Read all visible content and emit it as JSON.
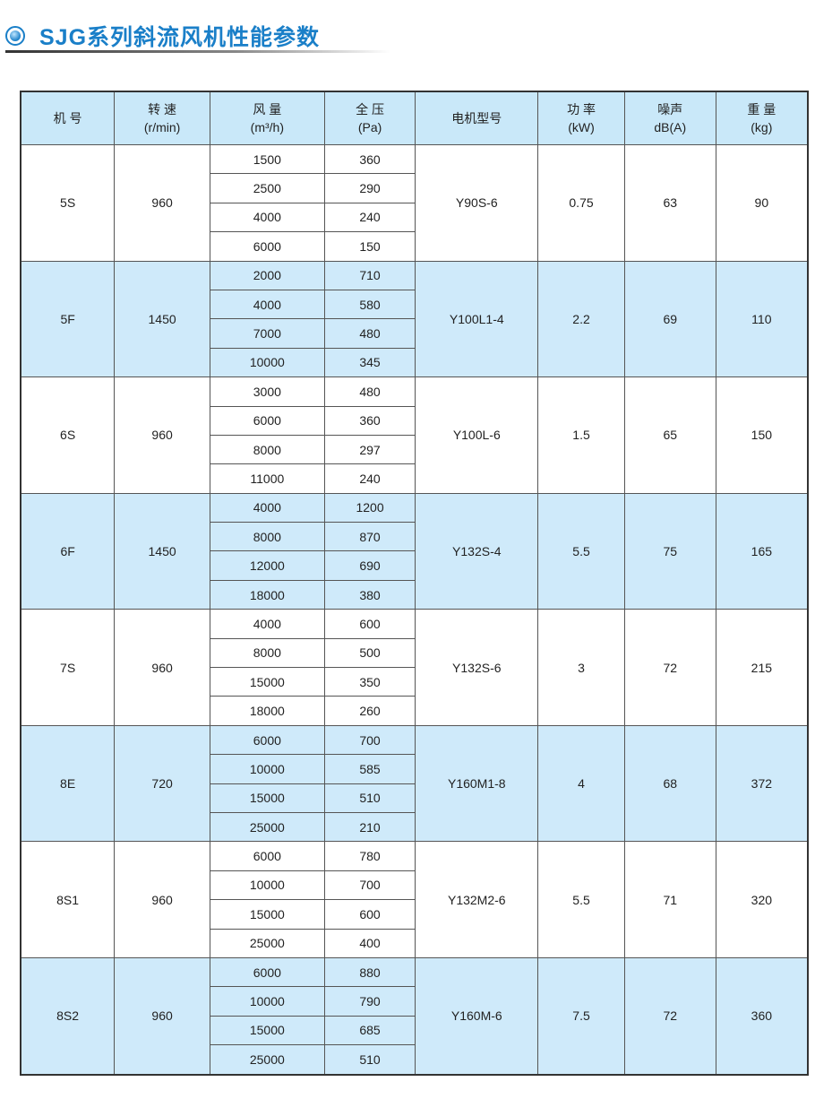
{
  "title": "SJG系列斜流风机性能参数",
  "headers": [
    {
      "l1": "机 号",
      "l2": ""
    },
    {
      "l1": "转 速",
      "l2": "(r/min)"
    },
    {
      "l1": "风 量",
      "l2": "(m³/h)"
    },
    {
      "l1": "全 压",
      "l2": "(Pa)"
    },
    {
      "l1": "电机型号",
      "l2": ""
    },
    {
      "l1": "功 率",
      "l2": "(kW)"
    },
    {
      "l1": "噪声",
      "l2": "dB(A)"
    },
    {
      "l1": "重 量",
      "l2": "(kg)"
    }
  ],
  "rows": [
    {
      "model": "5S",
      "speed": "960",
      "flow": [
        "1500",
        "2500",
        "4000",
        "6000"
      ],
      "pressure": [
        "360",
        "290",
        "240",
        "150"
      ],
      "motor": "Y90S-6",
      "power": "0.75",
      "noise": "63",
      "weight": "90"
    },
    {
      "model": "5F",
      "speed": "1450",
      "flow": [
        "2000",
        "4000",
        "7000",
        "10000"
      ],
      "pressure": [
        "710",
        "580",
        "480",
        "345"
      ],
      "motor": "Y100L1-4",
      "power": "2.2",
      "noise": "69",
      "weight": "110"
    },
    {
      "model": "6S",
      "speed": "960",
      "flow": [
        "3000",
        "6000",
        "8000",
        "11000"
      ],
      "pressure": [
        "480",
        "360",
        "297",
        "240"
      ],
      "motor": "Y100L-6",
      "power": "1.5",
      "noise": "65",
      "weight": "150"
    },
    {
      "model": "6F",
      "speed": "1450",
      "flow": [
        "4000",
        "8000",
        "12000",
        "18000"
      ],
      "pressure": [
        "1200",
        "870",
        "690",
        "380"
      ],
      "motor": "Y132S-4",
      "power": "5.5",
      "noise": "75",
      "weight": "165"
    },
    {
      "model": "7S",
      "speed": "960",
      "flow": [
        "4000",
        "8000",
        "15000",
        "18000"
      ],
      "pressure": [
        "600",
        "500",
        "350",
        "260"
      ],
      "motor": "Y132S-6",
      "power": "3",
      "noise": "72",
      "weight": "215"
    },
    {
      "model": "8E",
      "speed": "720",
      "flow": [
        "6000",
        "10000",
        "15000",
        "25000"
      ],
      "pressure": [
        "700",
        "585",
        "510",
        "210"
      ],
      "motor": "Y160M1-8",
      "power": "4",
      "noise": "68",
      "weight": "372"
    },
    {
      "model": "8S1",
      "speed": "960",
      "flow": [
        "6000",
        "10000",
        "15000",
        "25000"
      ],
      "pressure": [
        "780",
        "700",
        "600",
        "400"
      ],
      "motor": "Y132M2-6",
      "power": "5.5",
      "noise": "71",
      "weight": "320"
    },
    {
      "model": "8S2",
      "speed": "960",
      "flow": [
        "6000",
        "10000",
        "15000",
        "25000"
      ],
      "pressure": [
        "880",
        "790",
        "685",
        "510"
      ],
      "motor": "Y160M-6",
      "power": "7.5",
      "noise": "72",
      "weight": "360"
    }
  ]
}
